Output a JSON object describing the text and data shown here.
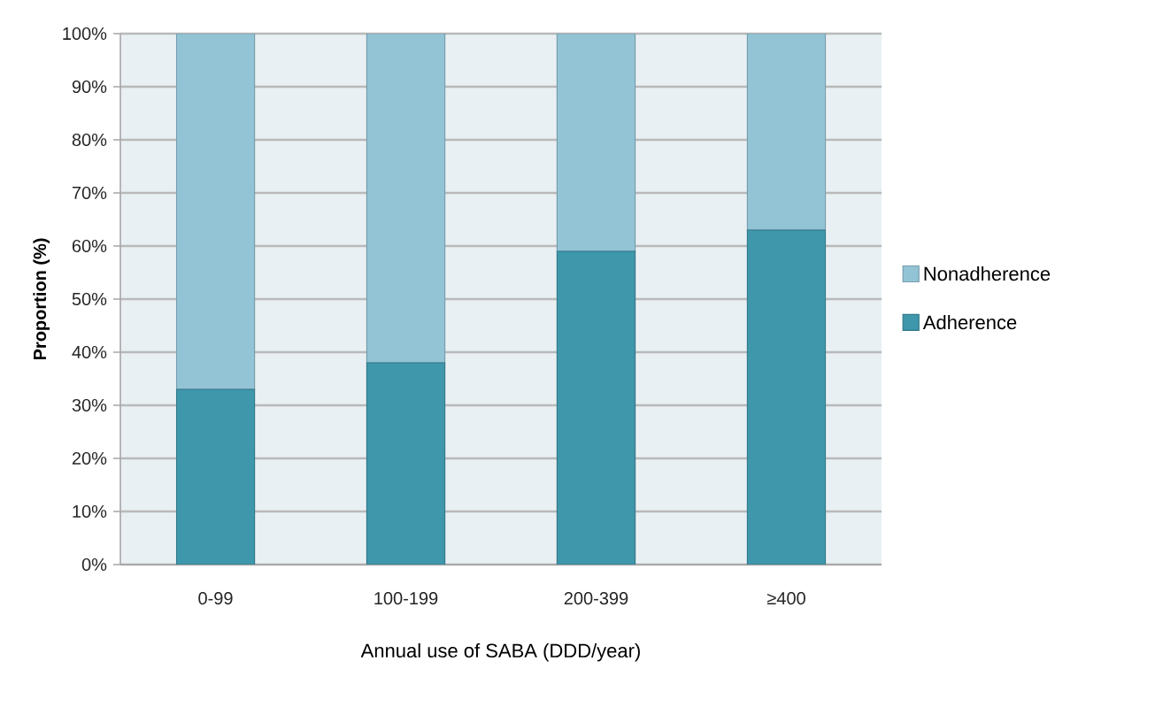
{
  "chart_data": {
    "type": "bar",
    "stacked": true,
    "xlabel": "Annual use of SABA (DDD/year)",
    "ylabel": "Proportion (%)",
    "categories": [
      "0-99",
      "100-199",
      "200-399",
      "≥400"
    ],
    "series": [
      {
        "name": "Adherence",
        "color": "#3f97ab",
        "values": [
          33,
          38,
          59,
          63
        ]
      },
      {
        "name": "Nonadherence",
        "color": "#93c4d6",
        "values": [
          67,
          62,
          41,
          37
        ]
      }
    ],
    "ylim": [
      0,
      100
    ],
    "yticks": [
      {
        "value": 0,
        "label": "0%"
      },
      {
        "value": 10,
        "label": "10%"
      },
      {
        "value": 20,
        "label": "20%"
      },
      {
        "value": 30,
        "label": "30%"
      },
      {
        "value": 40,
        "label": "40%"
      },
      {
        "value": 50,
        "label": "50%"
      },
      {
        "value": 60,
        "label": "60%"
      },
      {
        "value": 70,
        "label": "70%"
      },
      {
        "value": 80,
        "label": "80%"
      },
      {
        "value": 90,
        "label": "90%"
      },
      {
        "value": 100,
        "label": "100%"
      }
    ],
    "grid": "y",
    "legend": "right"
  }
}
